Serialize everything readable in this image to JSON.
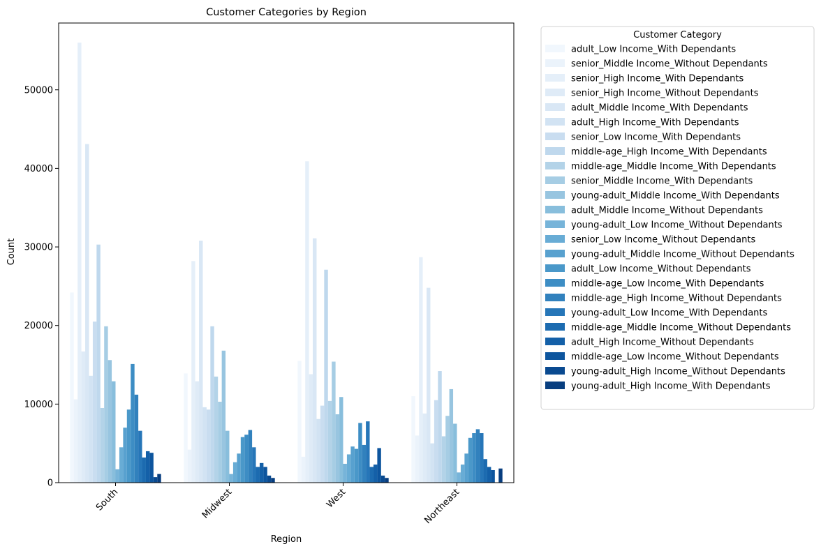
{
  "chart_data": {
    "type": "bar",
    "title": "Customer Categories by Region",
    "xlabel": "Region",
    "ylabel": "Count",
    "ylim": [
      0,
      58500
    ],
    "yticks": [
      0,
      10000,
      20000,
      30000,
      40000,
      50000
    ],
    "categories": [
      "South",
      "Midwest",
      "West",
      "Northeast"
    ],
    "legend": {
      "title": "Customer Category",
      "position": "outside-right"
    },
    "series": [
      {
        "name": "adult_Low Income_With Dependants",
        "color": "#f1f7fd",
        "values": [
          24200,
          13900,
          15500,
          11000
        ]
      },
      {
        "name": "senior_Middle Income_Without Dependants",
        "color": "#ebf3fb",
        "values": [
          10600,
          4200,
          3300,
          6000
        ]
      },
      {
        "name": "senior_High Income_With Dependants",
        "color": "#e5eff9",
        "values": [
          56000,
          28200,
          40900,
          28700
        ]
      },
      {
        "name": "senior_High Income_Without Dependants",
        "color": "#dfebf7",
        "values": [
          16700,
          12900,
          13800,
          8800
        ]
      },
      {
        "name": "adult_Middle Income_With Dependants",
        "color": "#d9e7f5",
        "values": [
          43100,
          30800,
          31100,
          24800
        ]
      },
      {
        "name": "adult_High Income_With Dependants",
        "color": "#d2e3f3",
        "values": [
          13600,
          9600,
          8100,
          5000
        ]
      },
      {
        "name": "senior_Low Income_With Dependants",
        "color": "#c9ddf0",
        "values": [
          20500,
          9300,
          9800,
          10500
        ]
      },
      {
        "name": "middle-age_High Income_With Dependants",
        "color": "#bfd8ed",
        "values": [
          30300,
          19900,
          27100,
          14200
        ]
      },
      {
        "name": "middle-age_Middle Income_With Dependants",
        "color": "#b3d3e8",
        "values": [
          9500,
          13500,
          10400,
          5900
        ]
      },
      {
        "name": "senior_Middle Income_With Dependants",
        "color": "#a6cde4",
        "values": [
          19900,
          10300,
          15400,
          8500
        ]
      },
      {
        "name": "young-adult_Middle Income_With Dependants",
        "color": "#98c5e0",
        "values": [
          15600,
          16800,
          8700,
          11900
        ]
      },
      {
        "name": "adult_Middle Income_Without Dependants",
        "color": "#88bedc",
        "values": [
          12900,
          6600,
          10900,
          7500
        ]
      },
      {
        "name": "young-adult_Low Income_Without Dependants",
        "color": "#77b4d9",
        "values": [
          1700,
          1100,
          2400,
          1300
        ]
      },
      {
        "name": "senior_Low Income_Without Dependants",
        "color": "#68acd5",
        "values": [
          4500,
          2600,
          3600,
          2300
        ]
      },
      {
        "name": "young-adult_Middle Income_Without Dependants",
        "color": "#58a1cf",
        "values": [
          7000,
          3700,
          4600,
          3700
        ]
      },
      {
        "name": "adult_Low Income_Without Dependants",
        "color": "#4a98c9",
        "values": [
          9300,
          5800,
          4300,
          5700
        ]
      },
      {
        "name": "middle-age_Low Income_With Dependants",
        "color": "#3d8dc4",
        "values": [
          15100,
          6100,
          7600,
          6300
        ]
      },
      {
        "name": "middle-age_High Income_Without Dependants",
        "color": "#3181bd",
        "values": [
          11200,
          6700,
          4800,
          6800
        ]
      },
      {
        "name": "young-adult_Low Income_With Dependants",
        "color": "#2676b8",
        "values": [
          6600,
          4500,
          7800,
          6300
        ]
      },
      {
        "name": "middle-age_Middle Income_Without Dependants",
        "color": "#1c6bb0",
        "values": [
          3200,
          2000,
          2000,
          3000
        ]
      },
      {
        "name": "adult_High Income_Without Dependants",
        "color": "#1460a8",
        "values": [
          4000,
          2500,
          2300,
          2000
        ]
      },
      {
        "name": "middle-age_Low Income_Without Dependants",
        "color": "#0d559e",
        "values": [
          3800,
          2000,
          4400,
          1600
        ]
      },
      {
        "name": "young-adult_High Income_Without Dependants",
        "color": "#0a4a90",
        "values": [
          700,
          900,
          900,
          0
        ]
      },
      {
        "name": "young-adult_High Income_With Dependants",
        "color": "#083e7f",
        "values": [
          1100,
          600,
          600,
          1800
        ]
      }
    ]
  }
}
